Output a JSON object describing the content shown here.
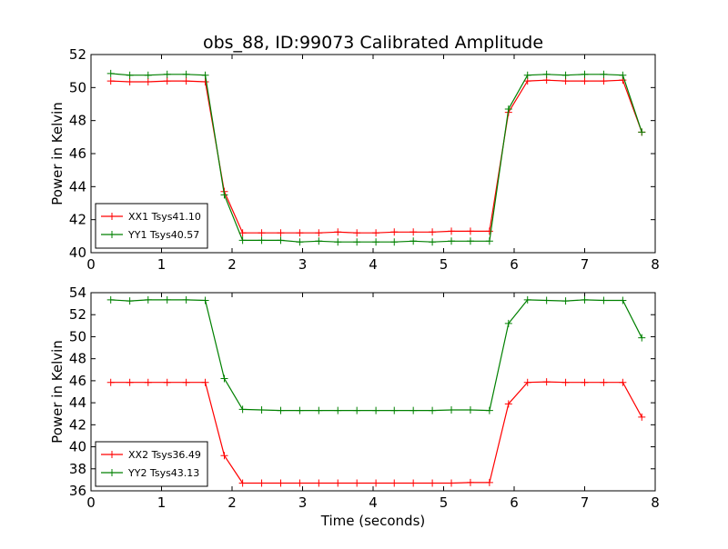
{
  "title": "obs_88, ID:99073 Calibrated Amplitude",
  "xlabel": "Time (seconds)",
  "colors": {
    "xx": "#ff0000",
    "yy": "#008000",
    "axis": "#000000",
    "background": "#ffffff"
  },
  "chart_data": [
    {
      "type": "line",
      "title": "obs_88, ID:99073 Calibrated Amplitude",
      "xlabel": "",
      "ylabel": "Power in Kelvin",
      "xlim": [
        0,
        8
      ],
      "ylim": [
        40,
        52
      ],
      "xticks": [
        0,
        1,
        2,
        3,
        4,
        5,
        6,
        7,
        8
      ],
      "yticks": [
        40,
        42,
        44,
        46,
        48,
        50,
        52
      ],
      "grid": false,
      "legend_position": "lower-left",
      "x": [
        0.28,
        0.55,
        0.81,
        1.08,
        1.35,
        1.62,
        1.89,
        2.15,
        2.42,
        2.69,
        2.96,
        3.23,
        3.5,
        3.77,
        4.04,
        4.3,
        4.57,
        4.84,
        5.11,
        5.38,
        5.65,
        5.92,
        6.19,
        6.46,
        6.73,
        7.0,
        7.27,
        7.54,
        7.81
      ],
      "series": [
        {
          "name": "XX1 Tsys41.10",
          "color": "#ff0000",
          "values": [
            50.4,
            50.35,
            50.35,
            50.4,
            50.4,
            50.35,
            43.7,
            41.2,
            41.2,
            41.2,
            41.2,
            41.2,
            41.25,
            41.2,
            41.2,
            41.25,
            41.25,
            41.25,
            41.3,
            41.3,
            41.3,
            48.5,
            50.4,
            50.45,
            50.4,
            50.4,
            50.4,
            50.45,
            47.3
          ]
        },
        {
          "name": "YY1 Tsys40.57",
          "color": "#008000",
          "values": [
            50.85,
            50.75,
            50.75,
            50.8,
            50.8,
            50.75,
            43.5,
            40.75,
            40.75,
            40.75,
            40.65,
            40.7,
            40.65,
            40.65,
            40.65,
            40.65,
            40.7,
            40.65,
            40.7,
            40.7,
            40.7,
            48.7,
            50.75,
            50.8,
            50.75,
            50.8,
            50.8,
            50.75,
            47.3
          ]
        }
      ]
    },
    {
      "type": "line",
      "title": "",
      "xlabel": "Time (seconds)",
      "ylabel": "Power in Kelvin",
      "xlim": [
        0,
        8
      ],
      "ylim": [
        36,
        54
      ],
      "xticks": [
        0,
        1,
        2,
        3,
        4,
        5,
        6,
        7,
        8
      ],
      "yticks": [
        36,
        38,
        40,
        42,
        44,
        46,
        48,
        50,
        52,
        54
      ],
      "grid": false,
      "legend_position": "lower-left",
      "x": [
        0.28,
        0.55,
        0.81,
        1.08,
        1.35,
        1.62,
        1.89,
        2.15,
        2.42,
        2.69,
        2.96,
        3.23,
        3.5,
        3.77,
        4.04,
        4.3,
        4.57,
        4.84,
        5.11,
        5.38,
        5.65,
        5.92,
        6.19,
        6.46,
        6.73,
        7.0,
        7.27,
        7.54,
        7.81
      ],
      "series": [
        {
          "name": "XX2 Tsys36.49",
          "color": "#ff0000",
          "values": [
            45.85,
            45.85,
            45.85,
            45.85,
            45.85,
            45.85,
            39.2,
            36.7,
            36.7,
            36.7,
            36.7,
            36.7,
            36.7,
            36.7,
            36.7,
            36.7,
            36.7,
            36.7,
            36.7,
            36.75,
            36.75,
            43.9,
            45.85,
            45.9,
            45.85,
            45.85,
            45.85,
            45.85,
            42.7
          ]
        },
        {
          "name": "YY2 Tsys43.13",
          "color": "#008000",
          "values": [
            53.35,
            53.25,
            53.35,
            53.35,
            53.35,
            53.3,
            46.2,
            43.4,
            43.35,
            43.3,
            43.3,
            43.3,
            43.3,
            43.3,
            43.3,
            43.3,
            43.3,
            43.3,
            43.35,
            43.35,
            43.3,
            51.2,
            53.35,
            53.3,
            53.25,
            53.35,
            53.3,
            53.3,
            49.9
          ]
        }
      ]
    }
  ]
}
